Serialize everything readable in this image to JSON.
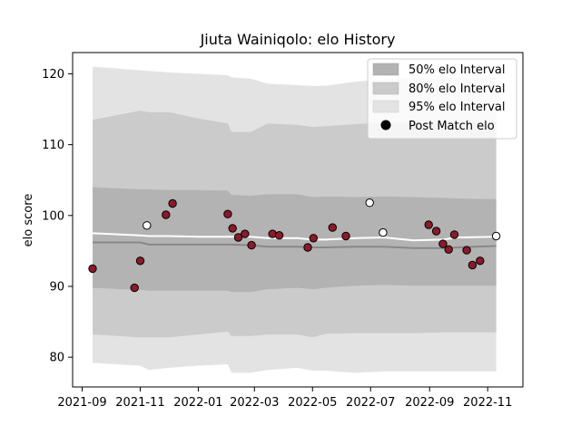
{
  "chart_data": {
    "type": "line",
    "title": "Jiuta Wainiqolo: elo History",
    "xlabel": "",
    "ylabel": "elo score",
    "xlim": [
      "2021-08-22",
      "2022-12-08"
    ],
    "ylim": [
      75.8,
      123.0
    ],
    "x_ticks": [
      "2021-09",
      "2021-11",
      "2022-01",
      "2022-03",
      "2022-05",
      "2022-07",
      "2022-09",
      "2022-11"
    ],
    "y_ticks": [
      80,
      90,
      100,
      110,
      120
    ],
    "grid": false,
    "legend_position": "top-right",
    "legend": [
      "50% elo Interval",
      "80% elo Interval",
      "95% elo Interval",
      "Post Match elo"
    ],
    "colors": {
      "band_95": "#e3e3e3",
      "band_80": "#cbcbcb",
      "band_50": "#b3b3b3",
      "median_line": "#888888",
      "mean_line": "#ffffff",
      "point_fill": "#8b1a2b",
      "point_highlight": "#ffffff"
    },
    "bands": {
      "x": [
        "2021-09-12",
        "2021-11-01",
        "2021-11-10",
        "2021-12-01",
        "2022-01-01",
        "2022-02-01",
        "2022-02-05",
        "2022-02-25",
        "2022-03-15",
        "2022-04-15",
        "2022-05-01",
        "2022-05-15",
        "2022-06-15",
        "2022-07-15",
        "2022-08-15",
        "2022-09-15",
        "2022-10-01",
        "2022-11-10"
      ],
      "p95_low": [
        79.2,
        78.8,
        78.2,
        78.5,
        78.8,
        79.0,
        77.8,
        77.8,
        78.2,
        78.5,
        78.1,
        78.1,
        77.8,
        78.0,
        78.0,
        78.0,
        78.0,
        78.0
      ],
      "p95_high": [
        121.0,
        120.5,
        120.4,
        120.2,
        120.0,
        119.8,
        119.5,
        119.3,
        118.6,
        118.4,
        118.3,
        118.3,
        118.9,
        119.2,
        119.4,
        119.5,
        119.5,
        119.5
      ],
      "p80_low": [
        83.2,
        82.8,
        82.8,
        82.8,
        83.2,
        83.6,
        83.0,
        83.0,
        83.2,
        83.2,
        82.8,
        83.3,
        83.4,
        83.4,
        83.4,
        83.5,
        83.5,
        83.5
      ],
      "p80_high": [
        113.5,
        114.8,
        114.6,
        114.6,
        113.7,
        113.0,
        111.8,
        111.8,
        113.0,
        112.8,
        112.5,
        112.6,
        112.9,
        113.1,
        113.0,
        113.0,
        113.2,
        113.3
      ],
      "p50_low": [
        89.8,
        89.5,
        89.4,
        89.4,
        89.4,
        89.4,
        89.2,
        89.2,
        89.6,
        89.8,
        89.6,
        89.8,
        90.1,
        90.2,
        90.1,
        90.1,
        90.1,
        90.1
      ],
      "p50_high": [
        104.0,
        103.7,
        103.7,
        103.6,
        103.6,
        103.5,
        102.9,
        102.8,
        103.0,
        103.0,
        102.6,
        102.7,
        102.6,
        102.7,
        102.6,
        102.5,
        102.4,
        102.3
      ],
      "median": [
        96.2,
        96.2,
        95.9,
        95.9,
        95.9,
        95.9,
        95.9,
        95.8,
        95.6,
        95.6,
        95.5,
        95.5,
        95.6,
        95.6,
        95.4,
        95.4,
        95.5,
        95.7
      ],
      "mean": [
        97.5,
        97.2,
        97.1,
        97.1,
        97.0,
        97.0,
        97.0,
        97.0,
        96.8,
        96.8,
        96.6,
        96.6,
        96.8,
        96.9,
        96.5,
        96.6,
        96.9,
        97.0
      ]
    },
    "series": [
      {
        "name": "Post Match elo",
        "points": [
          {
            "x": "2021-09-12",
            "y": 92.5,
            "highlight": false
          },
          {
            "x": "2021-10-26",
            "y": 89.8,
            "highlight": false
          },
          {
            "x": "2021-11-01",
            "y": 93.6,
            "highlight": false
          },
          {
            "x": "2021-11-08",
            "y": 98.6,
            "highlight": true
          },
          {
            "x": "2021-11-28",
            "y": 100.1,
            "highlight": false
          },
          {
            "x": "2021-12-05",
            "y": 101.7,
            "highlight": false
          },
          {
            "x": "2022-02-01",
            "y": 100.2,
            "highlight": false
          },
          {
            "x": "2022-02-06",
            "y": 98.2,
            "highlight": false
          },
          {
            "x": "2022-02-12",
            "y": 96.9,
            "highlight": false
          },
          {
            "x": "2022-02-19",
            "y": 97.4,
            "highlight": false
          },
          {
            "x": "2022-02-26",
            "y": 95.8,
            "highlight": false
          },
          {
            "x": "2022-03-20",
            "y": 97.4,
            "highlight": false
          },
          {
            "x": "2022-03-27",
            "y": 97.2,
            "highlight": false
          },
          {
            "x": "2022-04-26",
            "y": 95.5,
            "highlight": false
          },
          {
            "x": "2022-05-02",
            "y": 96.8,
            "highlight": false
          },
          {
            "x": "2022-05-22",
            "y": 98.3,
            "highlight": false
          },
          {
            "x": "2022-06-05",
            "y": 97.1,
            "highlight": false
          },
          {
            "x": "2022-06-30",
            "y": 101.8,
            "highlight": true
          },
          {
            "x": "2022-07-14",
            "y": 97.6,
            "highlight": true
          },
          {
            "x": "2022-08-31",
            "y": 98.7,
            "highlight": false
          },
          {
            "x": "2022-09-08",
            "y": 97.8,
            "highlight": false
          },
          {
            "x": "2022-09-15",
            "y": 96.0,
            "highlight": false
          },
          {
            "x": "2022-09-21",
            "y": 95.2,
            "highlight": false
          },
          {
            "x": "2022-09-27",
            "y": 97.3,
            "highlight": false
          },
          {
            "x": "2022-10-10",
            "y": 95.1,
            "highlight": false
          },
          {
            "x": "2022-10-16",
            "y": 93.0,
            "highlight": false
          },
          {
            "x": "2022-10-24",
            "y": 93.6,
            "highlight": false
          },
          {
            "x": "2022-11-10",
            "y": 97.1,
            "highlight": true
          }
        ]
      }
    ]
  }
}
